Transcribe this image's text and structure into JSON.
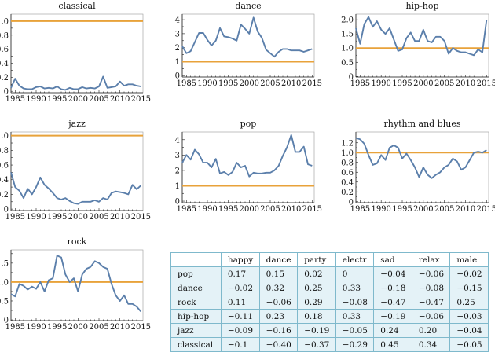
{
  "colors": {
    "series": "#5b7fab",
    "reference": "#e8a23a",
    "table_border": "#7fb9cc",
    "table_fill": "#e4f2f7"
  },
  "chart_data": [
    {
      "type": "line",
      "title": "classical",
      "x": [
        1984,
        1985,
        1986,
        1987,
        1988,
        1989,
        1990,
        1991,
        1992,
        1993,
        1994,
        1995,
        1996,
        1997,
        1998,
        1999,
        2000,
        2001,
        2002,
        2003,
        2004,
        2005,
        2006,
        2007,
        2008,
        2009,
        2010,
        2011,
        2012,
        2013,
        2014,
        2015
      ],
      "values": [
        0.05,
        0.18,
        0.08,
        0.04,
        0.03,
        0.03,
        0.06,
        0.07,
        0.04,
        0.05,
        0.04,
        0.07,
        0.03,
        0.02,
        0.05,
        0.03,
        0.03,
        0.06,
        0.04,
        0.05,
        0.04,
        0.07,
        0.21,
        0.05,
        0.06,
        0.07,
        0.14,
        0.08,
        0.1,
        0.1,
        0.08,
        0.07
      ],
      "reference": 1.0,
      "ylim": [
        -0.02,
        1.1
      ],
      "yticks": [
        "0",
        "0.2",
        "0.4",
        "0.6",
        "0.8",
        "1.0"
      ],
      "ytick_values": [
        0,
        0.2,
        0.4,
        0.6,
        0.8,
        1.0
      ],
      "xticks": [
        "1985",
        "1990",
        "1995",
        "2000",
        "2005",
        "2010",
        "2015"
      ]
    },
    {
      "type": "line",
      "title": "dance",
      "x": [
        1984,
        1985,
        1986,
        1987,
        1988,
        1989,
        1990,
        1991,
        1992,
        1993,
        1994,
        1995,
        1996,
        1997,
        1998,
        1999,
        2000,
        2001,
        2002,
        2003,
        2004,
        2005,
        2006,
        2007,
        2008,
        2009,
        2010,
        2011,
        2012,
        2013,
        2014,
        2015
      ],
      "values": [
        2.1,
        1.6,
        1.75,
        2.4,
        3.05,
        3.05,
        2.55,
        2.15,
        2.5,
        3.4,
        2.8,
        2.75,
        2.65,
        2.5,
        3.65,
        3.35,
        3.0,
        4.15,
        3.15,
        2.7,
        1.85,
        1.6,
        1.35,
        1.7,
        1.9,
        1.9,
        1.8,
        1.8,
        1.8,
        1.7,
        1.8,
        1.9
      ],
      "reference": 1.0,
      "ylim": [
        -0.1,
        4.4
      ],
      "yticks": [
        "0",
        "1",
        "2",
        "3",
        "4"
      ],
      "ytick_values": [
        0,
        1,
        2,
        3,
        4
      ],
      "xticks": [
        "1985",
        "1990",
        "1995",
        "2000",
        "2005",
        "2010",
        "2015"
      ]
    },
    {
      "type": "line",
      "title": "hip-hop",
      "x": [
        1984,
        1985,
        1986,
        1987,
        1988,
        1989,
        1990,
        1991,
        1992,
        1993,
        1994,
        1995,
        1996,
        1997,
        1998,
        1999,
        2000,
        2001,
        2002,
        2003,
        2004,
        2005,
        2006,
        2007,
        2008,
        2009,
        2010,
        2011,
        2012,
        2013,
        2014,
        2015
      ],
      "values": [
        1.7,
        1.15,
        1.85,
        2.1,
        1.75,
        1.95,
        1.65,
        1.5,
        1.7,
        1.3,
        0.9,
        0.95,
        1.35,
        1.55,
        1.25,
        1.25,
        1.65,
        1.25,
        1.2,
        1.4,
        1.4,
        1.25,
        0.8,
        1.0,
        0.9,
        0.85,
        0.85,
        0.8,
        0.75,
        0.95,
        0.85,
        2.0
      ],
      "reference": 1.0,
      "ylim": [
        -0.02,
        2.2
      ],
      "yticks": [
        "0",
        "0.5",
        "1.0",
        "1.5",
        "2.0"
      ],
      "ytick_values": [
        0,
        0.5,
        1.0,
        1.5,
        2.0
      ],
      "xticks": [
        "1985",
        "1990",
        "1995",
        "2000",
        "2005",
        "2010",
        "2015"
      ]
    },
    {
      "type": "line",
      "title": "jazz",
      "x": [
        1984,
        1985,
        1986,
        1987,
        1988,
        1989,
        1990,
        1991,
        1992,
        1993,
        1994,
        1995,
        1996,
        1997,
        1998,
        1999,
        2000,
        2001,
        2002,
        2003,
        2004,
        2005,
        2006,
        2007,
        2008,
        2009,
        2010,
        2011,
        2012,
        2013,
        2014,
        2015
      ],
      "values": [
        0.5,
        0.3,
        0.25,
        0.15,
        0.28,
        0.2,
        0.3,
        0.43,
        0.33,
        0.28,
        0.22,
        0.15,
        0.13,
        0.15,
        0.11,
        0.08,
        0.07,
        0.1,
        0.1,
        0.1,
        0.12,
        0.1,
        0.15,
        0.13,
        0.22,
        0.24,
        0.23,
        0.22,
        0.2,
        0.33,
        0.27,
        0.32
      ],
      "reference": 1.0,
      "ylim": [
        -0.02,
        1.05
      ],
      "yticks": [
        "0",
        "0.2",
        "0.4",
        "0.6",
        "0.8",
        "1.0"
      ],
      "ytick_values": [
        0,
        0.2,
        0.4,
        0.6,
        0.8,
        1.0
      ],
      "xticks": [
        "1985",
        "1990",
        "1995",
        "2000",
        "2005",
        "2010",
        "2015"
      ]
    },
    {
      "type": "line",
      "title": "pop",
      "x": [
        1984,
        1985,
        1986,
        1987,
        1988,
        1989,
        1990,
        1991,
        1992,
        1993,
        1994,
        1995,
        1996,
        1997,
        1998,
        1999,
        2000,
        2001,
        2002,
        2003,
        2004,
        2005,
        2006,
        2007,
        2008,
        2009,
        2010,
        2011,
        2012,
        2013,
        2014,
        2015
      ],
      "values": [
        2.5,
        3.0,
        2.7,
        3.35,
        3.05,
        2.5,
        2.5,
        2.2,
        2.75,
        1.8,
        1.9,
        1.7,
        1.9,
        2.5,
        2.2,
        2.3,
        1.6,
        1.85,
        1.8,
        1.8,
        1.85,
        1.85,
        2.0,
        2.3,
        2.95,
        3.5,
        4.3,
        3.2,
        3.2,
        3.55,
        2.4,
        2.3
      ],
      "reference": 1.0,
      "ylim": [
        -0.1,
        4.5
      ],
      "yticks": [
        "0",
        "1",
        "2",
        "3",
        "4"
      ],
      "ytick_values": [
        0,
        1,
        2,
        3,
        4
      ],
      "xticks": [
        "1985",
        "1990",
        "1995",
        "2000",
        "2005",
        "2010",
        "2015"
      ]
    },
    {
      "type": "line",
      "title": "rhythm and blues",
      "x": [
        1984,
        1985,
        1986,
        1987,
        1988,
        1989,
        1990,
        1991,
        1992,
        1993,
        1994,
        1995,
        1996,
        1997,
        1998,
        1999,
        2000,
        2001,
        2002,
        2003,
        2004,
        2005,
        2006,
        2007,
        2008,
        2009,
        2010,
        2011,
        2012,
        2013,
        2014,
        2015
      ],
      "values": [
        1.3,
        1.27,
        1.18,
        0.95,
        0.75,
        0.78,
        0.95,
        0.85,
        1.1,
        1.15,
        1.1,
        0.88,
        0.98,
        0.85,
        0.7,
        0.5,
        0.7,
        0.55,
        0.48,
        0.55,
        0.6,
        0.7,
        0.75,
        0.88,
        0.82,
        0.65,
        0.7,
        0.85,
        1.0,
        1.02,
        1.0,
        1.05
      ],
      "reference": 1.0,
      "ylim": [
        -0.02,
        1.42
      ],
      "yticks": [
        "0",
        "0.2",
        "0.4",
        "0.6",
        "0.8",
        "1.0",
        "1.2"
      ],
      "ytick_values": [
        0,
        0.2,
        0.4,
        0.6,
        0.8,
        1.0,
        1.2
      ],
      "xticks": [
        "1985",
        "1990",
        "1995",
        "2000",
        "2005",
        "2010",
        "2015"
      ]
    },
    {
      "type": "line",
      "title": "rock",
      "x": [
        1984,
        1985,
        1986,
        1987,
        1988,
        1989,
        1990,
        1991,
        1992,
        1993,
        1994,
        1995,
        1996,
        1997,
        1998,
        1999,
        2000,
        2001,
        2002,
        2003,
        2004,
        2005,
        2006,
        2007,
        2008,
        2009,
        2010,
        2011,
        2012,
        2013,
        2014,
        2015
      ],
      "values": [
        0.68,
        0.62,
        0.95,
        0.9,
        0.8,
        0.88,
        0.82,
        1.0,
        0.75,
        1.05,
        1.1,
        1.7,
        1.65,
        1.2,
        1.0,
        1.1,
        0.75,
        1.2,
        1.35,
        1.4,
        1.55,
        1.5,
        1.4,
        1.35,
        0.95,
        0.65,
        0.5,
        0.65,
        0.42,
        0.42,
        0.35,
        0.22
      ],
      "reference": 1.0,
      "ylim": [
        -0.02,
        1.85
      ],
      "yticks": [
        "0",
        "0.5",
        "1.0",
        "1.5"
      ],
      "ytick_values": [
        0,
        0.5,
        1.0,
        1.5
      ],
      "xticks": [
        "1985",
        "1990",
        "1995",
        "2000",
        "2005",
        "2010",
        "2015"
      ]
    },
    {
      "type": "table",
      "columns": [
        "",
        "happy",
        "dance",
        "party",
        "electr",
        "sad",
        "relax",
        "male"
      ],
      "rows": [
        [
          "pop",
          "0.17",
          "0.15",
          "0.02",
          "0",
          "−0.04",
          "−0.06",
          "−0.02"
        ],
        [
          "dance",
          "−0.02",
          "0.32",
          "0.25",
          "0.33",
          "−0.18",
          "−0.08",
          "−0.15"
        ],
        [
          "rock",
          "0.11",
          "−0.06",
          "0.29",
          "−0.08",
          "−0.47",
          "−0.47",
          "0.25"
        ],
        [
          "hip-hop",
          "−0.11",
          "0.23",
          "0.18",
          "0.33",
          "−0.19",
          "−0.06",
          "−0.03"
        ],
        [
          "jazz",
          "−0.09",
          "−0.16",
          "−0.19",
          "−0.05",
          "0.24",
          "0.20",
          "−0.04"
        ],
        [
          "classical",
          "−0.1",
          "−0.40",
          "−0.37",
          "−0.29",
          "0.45",
          "0.34",
          "−0.05"
        ]
      ]
    }
  ]
}
